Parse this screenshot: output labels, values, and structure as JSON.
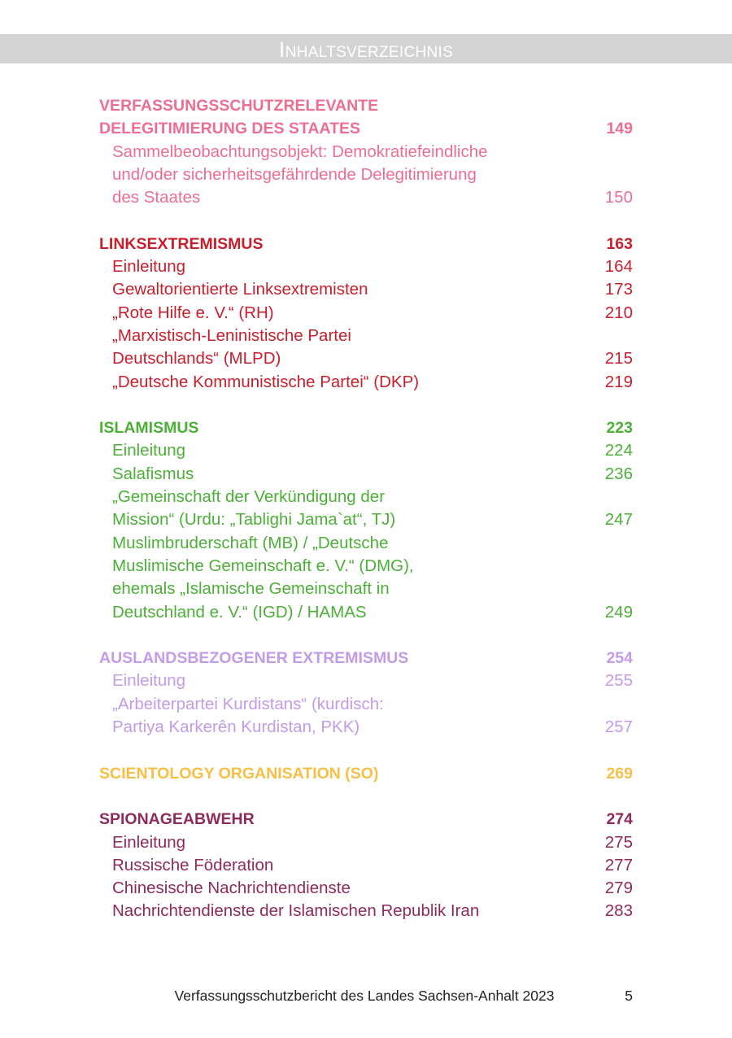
{
  "header": {
    "title": "Inhaltsverzeichnis",
    "background": "#d3d3d3"
  },
  "sections": [
    {
      "color": "#ec6f93",
      "heading": {
        "lines": [
          "VERFASSUNGSSCHUTZRELEVANTE",
          "DELEGITIMIERUNG DES STAATES"
        ],
        "page": "149"
      },
      "items": [
        {
          "lines": [
            "Sammelbeobachtungsobjekt: Demokratiefeindliche",
            "und/oder sicherheitsgefährdende Delegitimierung",
            "des Staates"
          ],
          "page": "150"
        }
      ]
    },
    {
      "color": "#c81f2d",
      "heading": {
        "lines": [
          "LINKSEXTREMISMUS"
        ],
        "page": "163"
      },
      "items": [
        {
          "lines": [
            "Einleitung"
          ],
          "page": "164"
        },
        {
          "lines": [
            "Gewaltorientierte Linksextremisten"
          ],
          "page": "173"
        },
        {
          "lines": [
            "„Rote Hilfe e. V.“ (RH)"
          ],
          "page": "210"
        },
        {
          "lines": [
            "„Marxistisch-Leninistische Partei",
            "Deutschlands“ (MLPD)"
          ],
          "page": "215"
        },
        {
          "lines": [
            "„Deutsche Kommunistische Partei“ (DKP)"
          ],
          "page": "219"
        }
      ]
    },
    {
      "color": "#4caf37",
      "heading": {
        "lines": [
          "ISLAMISMUS"
        ],
        "page": "223"
      },
      "items": [
        {
          "lines": [
            "Einleitung"
          ],
          "page": "224"
        },
        {
          "lines": [
            "Salafismus"
          ],
          "page": "236"
        },
        {
          "lines": [
            "„Gemeinschaft der Verkündigung der",
            "Mission“ (Urdu: „Tablighi Jama`at“, TJ)"
          ],
          "page": "247"
        },
        {
          "lines": [
            "Muslimbruderschaft (MB) / „Deutsche",
            "Muslimische Gemeinschaft e. V.“ (DMG),",
            "ehemals „Islamische Gemeinschaft in",
            "Deutschland e. V.“ (IGD) / HAMAS"
          ],
          "page": "249"
        }
      ]
    },
    {
      "color": "#c39be9",
      "heading": {
        "lines": [
          "AUSLANDSBEZOGENER EXTREMISMUS"
        ],
        "page": "254"
      },
      "items": [
        {
          "lines": [
            "Einleitung"
          ],
          "page": "255"
        },
        {
          "lines": [
            "„Arbeiterpartei Kurdistans“ (kurdisch:",
            "Partiya Karkerên Kurdistan, PKK)"
          ],
          "page": "257"
        }
      ]
    },
    {
      "color": "#f7bf45",
      "heading": {
        "lines": [
          "SCIENTOLOGY ORGANISATION (SO)"
        ],
        "page": "269"
      },
      "items": []
    },
    {
      "color": "#8e2a5c",
      "heading": {
        "lines": [
          "SPIONAGEABWEHR"
        ],
        "page": "274"
      },
      "items": [
        {
          "lines": [
            "Einleitung"
          ],
          "page": "275"
        },
        {
          "lines": [
            "Russische Föderation"
          ],
          "page": "277"
        },
        {
          "lines": [
            "Chinesische Nachrichtendienste"
          ],
          "page": "279"
        },
        {
          "lines": [
            "Nachrichtendienste der Islamischen Republik Iran"
          ],
          "page": "283"
        }
      ]
    }
  ],
  "footer": {
    "text": "Verfassungsschutzbericht des Landes Sachsen-Anhalt 2023",
    "page_number": "5"
  }
}
